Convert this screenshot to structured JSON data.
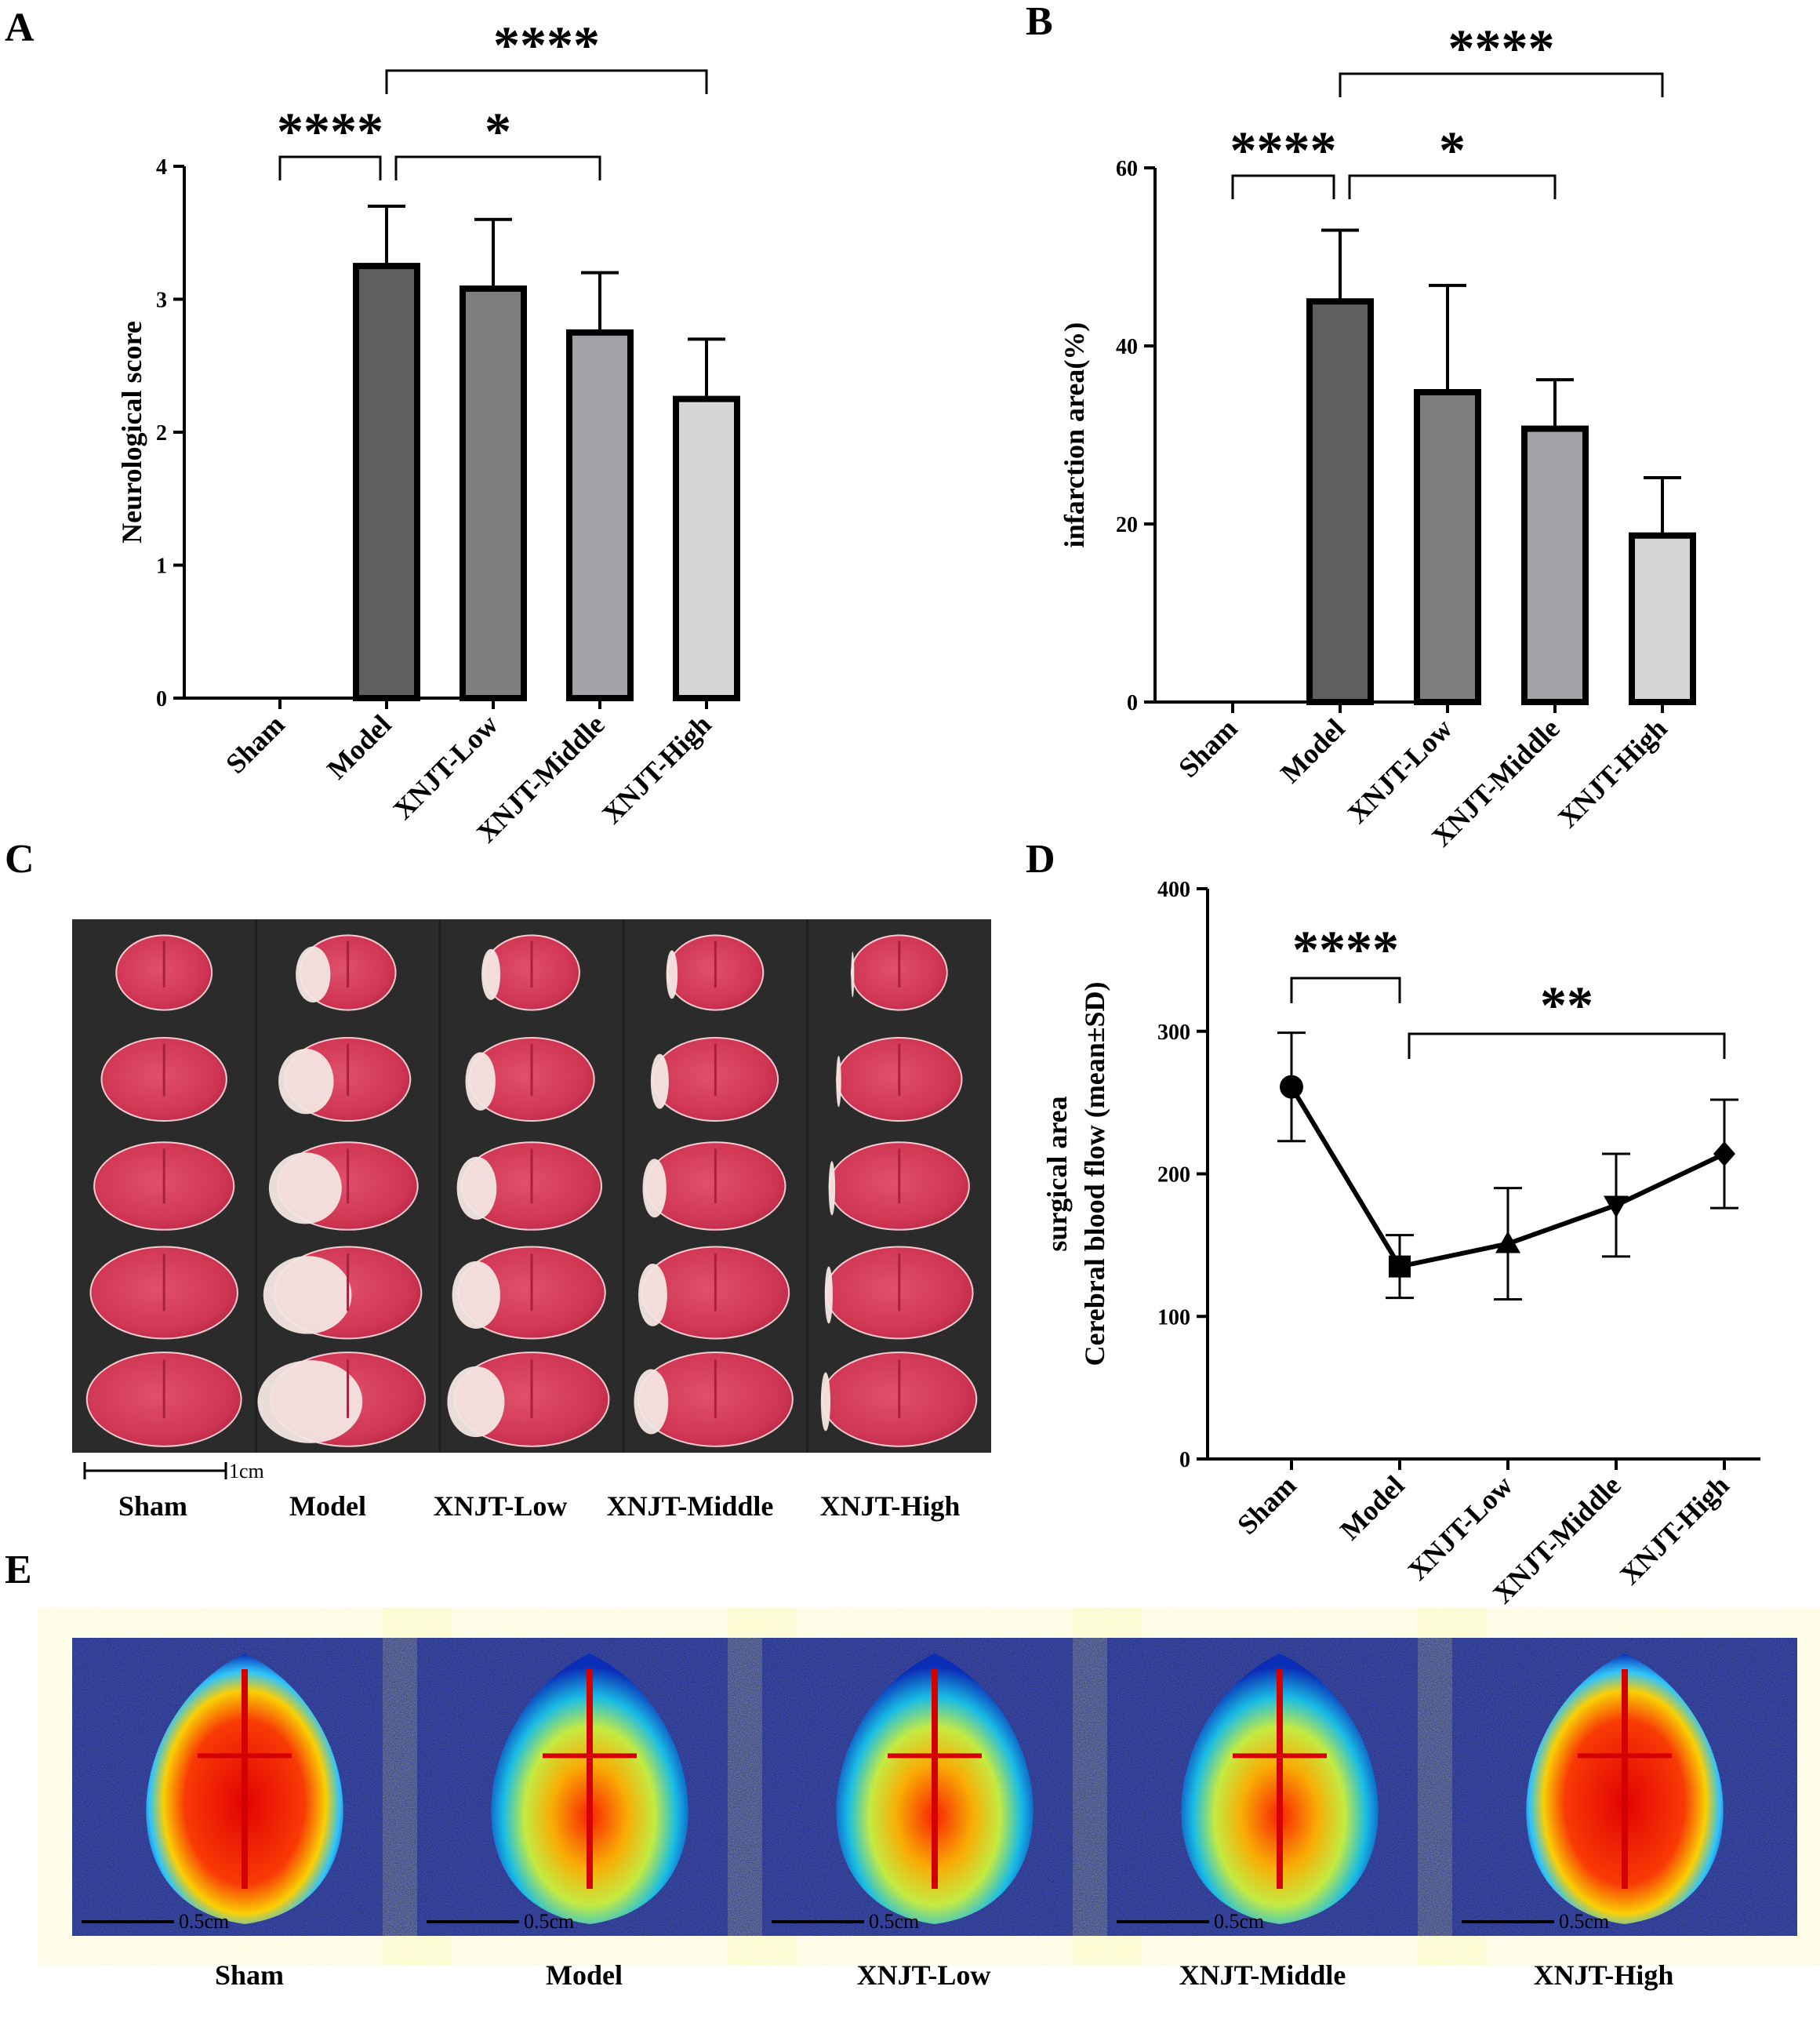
{
  "panels": {
    "A": "A",
    "B": "B",
    "C": "C",
    "D": "D",
    "E": "E"
  },
  "colors": {
    "bar_model": "#5f5f5f",
    "bar_low": "#7e7e7e",
    "bar_middle": "#a2a2a6",
    "bar_high": "#d6d6d6",
    "photo_bg": "#2b2b2b",
    "tissue_red": "#d8445e",
    "tissue_pale": "#f3e6e3"
  },
  "chart_data": [
    {
      "id": "A",
      "type": "bar",
      "ylabel": "Neurological score",
      "categories": [
        "Sham",
        "Model",
        "XNJT-Low",
        "XNJT-Middle",
        "XNJT-High"
      ],
      "values": [
        0,
        3.25,
        3.08,
        2.75,
        2.25
      ],
      "errors": [
        0,
        0.45,
        0.52,
        0.45,
        0.45
      ],
      "ylim": [
        0,
        4
      ],
      "yticks": [
        "0",
        "1",
        "2",
        "3",
        "4"
      ],
      "significance": [
        {
          "from": 0,
          "to": 1,
          "label": "****"
        },
        {
          "from": 1,
          "to": 3,
          "label": "*"
        },
        {
          "from": 1,
          "to": 4,
          "label": "****"
        }
      ]
    },
    {
      "id": "B",
      "type": "bar",
      "ylabel": "infarction area(%)",
      "categories": [
        "Sham",
        "Model",
        "XNJT-Low",
        "XNJT-Middle",
        "XNJT-High"
      ],
      "values": [
        0,
        45,
        34.8,
        30.7,
        18.7
      ],
      "errors": [
        0,
        8,
        12,
        5.5,
        6.5
      ],
      "ylim": [
        0,
        60
      ],
      "yticks": [
        "0",
        "20",
        "40",
        "60"
      ],
      "significance": [
        {
          "from": 0,
          "to": 1,
          "label": "****"
        },
        {
          "from": 1,
          "to": 3,
          "label": "*"
        },
        {
          "from": 1,
          "to": 4,
          "label": "****"
        }
      ]
    },
    {
      "id": "D",
      "type": "line",
      "ylabel_lines": [
        "surgical area",
        "Cerebral blood flow (mean±SD)"
      ],
      "categories": [
        "Sham",
        "Model",
        "XNJT-Low",
        "XNJT-Middle",
        "XNJT-High"
      ],
      "values": [
        261,
        135,
        151,
        178,
        214
      ],
      "errors": [
        38,
        22,
        39,
        36,
        38
      ],
      "markers": [
        "circle",
        "square",
        "triangle-up",
        "triangle-down",
        "diamond"
      ],
      "ylim": [
        0,
        400
      ],
      "yticks": [
        "0",
        "100",
        "200",
        "300",
        "400"
      ],
      "significance": [
        {
          "from": 0,
          "to": 1,
          "label": "****"
        },
        {
          "from": 1,
          "to": 4,
          "label": "**"
        }
      ]
    }
  ],
  "photo_c": {
    "labels": [
      "Sham",
      "Model",
      "XNJT-Low",
      "XNJT-Middle",
      "XNJT-High"
    ],
    "scale": "1cm",
    "infarct_fraction": [
      0,
      0.55,
      0.3,
      0.18,
      0.05
    ]
  },
  "photo_e": {
    "labels": [
      "Sham",
      "Model",
      "XNJT-Low",
      "XNJT-Middle",
      "XNJT-High"
    ],
    "scale": "0.5cm",
    "perfusion_level": [
      0.92,
      0.5,
      0.6,
      0.68,
      0.82
    ]
  }
}
